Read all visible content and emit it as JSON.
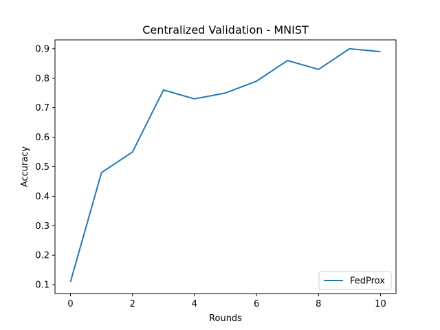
{
  "chart_data": {
    "type": "line",
    "title": "Centralized Validation - MNIST",
    "xlabel": "Rounds",
    "ylabel": "Accuracy",
    "x": [
      0,
      1,
      2,
      3,
      4,
      5,
      6,
      7,
      8,
      9,
      10
    ],
    "series": [
      {
        "name": "FedProx",
        "values": [
          0.11,
          0.48,
          0.55,
          0.76,
          0.73,
          0.75,
          0.79,
          0.86,
          0.83,
          0.9,
          0.89
        ],
        "color": "#1f77b4"
      }
    ],
    "xlim": [
      -0.5,
      10.5
    ],
    "ylim": [
      0.07,
      0.93
    ],
    "x_ticks": [
      "0",
      "2",
      "4",
      "6",
      "8",
      "10"
    ],
    "y_ticks": [
      "0.1",
      "0.2",
      "0.3",
      "0.4",
      "0.5",
      "0.6",
      "0.7",
      "0.8",
      "0.9"
    ],
    "grid": false,
    "legend_position": "lower-right"
  }
}
